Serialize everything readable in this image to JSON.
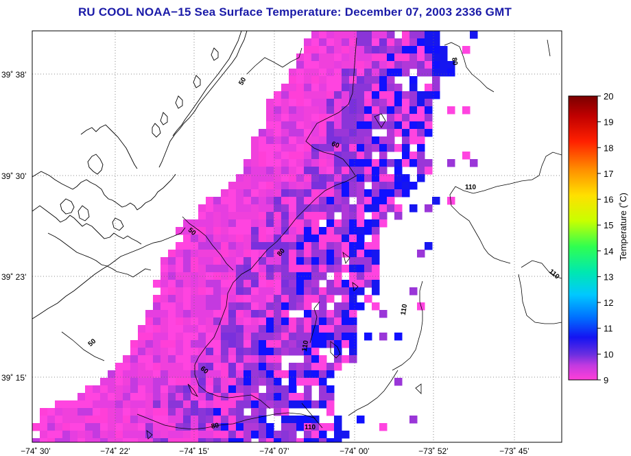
{
  "title": "RU COOL  NOAA−15  Sea Surface Temperature:  December 07, 2003 2336 GMT",
  "chart_data": {
    "type": "heatmap",
    "title": "RU COOL  NOAA−15  Sea Surface Temperature:  December 07, 2003 2336 GMT",
    "x_ticks": [
      "−74˚ 30’",
      "−74˚ 22’",
      "−74˚ 15’",
      "−74˚ 07’",
      "−74˚ 00’",
      "−73˚ 52’",
      "−73˚ 45’"
    ],
    "y_ticks": [
      "39˚ 38’",
      "39˚ 30’",
      "39˚ 23’",
      "39˚ 15’"
    ],
    "colorbar": {
      "label": "Temperature (˚C)",
      "min": 9,
      "max": 20,
      "ticks": [
        "20",
        "19",
        "18",
        "17",
        "16",
        "15",
        "14",
        "13",
        "12",
        "11",
        "10",
        "9"
      ]
    },
    "contour_labels": [
      "50",
      "50",
      "50",
      "60",
      "60",
      "80",
      "80",
      "80",
      "110",
      "110",
      "110",
      "110",
      "110"
    ],
    "grid": true,
    "colormap": [
      "#ff3fd8",
      "#c43ae0",
      "#8a35d8",
      "#4b2ee0",
      "#1616f0",
      "#0070ff",
      "#00c8ff",
      "#00e8b0",
      "#40ff40",
      "#c8ff00",
      "#ffe000",
      "#ff9000",
      "#ff2000",
      "#c00000",
      "#7a0000"
    ]
  }
}
